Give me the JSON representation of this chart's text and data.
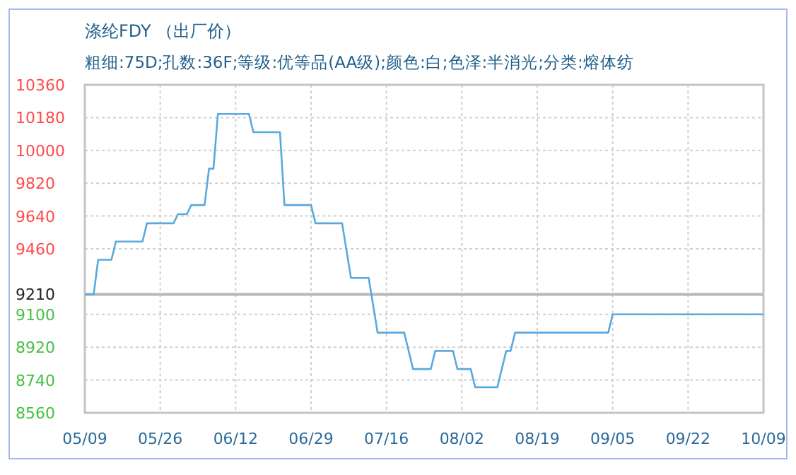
{
  "chart_data": {
    "type": "line",
    "title": "涤纶FDY （出厂价）",
    "subtitle": "粗细:75D;孔数:36F;等级:优等品(AA级);颜色:白;色泽:半消光;分类:熔体纺",
    "x": [
      "--05-09",
      "--05-11",
      "--05-12",
      "--05-15",
      "--05-16",
      "--05-22",
      "--05-23",
      "--05-29",
      "--05-30",
      "--06-01",
      "--06-02",
      "--06-05",
      "--06-06",
      "--06-07",
      "--06-08",
      "--06-15",
      "--06-16",
      "--06-22",
      "--06-23",
      "--06-29",
      "--06-30",
      "--07-06",
      "--07-08",
      "--07-12",
      "--07-14",
      "--07-20",
      "--07-22",
      "--07-26",
      "--07-27",
      "--07-31",
      "--08-01",
      "--08-04",
      "--08-05",
      "--08-10",
      "--08-12",
      "--08-13",
      "--08-14",
      "--09-04",
      "--09-05",
      "--10-09"
    ],
    "series": [
      {
        "color": "#5aa9de",
        "values": [
          9210,
          9210,
          9400,
          9400,
          9500,
          9500,
          9600,
          9600,
          9650,
          9650,
          9700,
          9700,
          9900,
          9900,
          10200,
          10200,
          10100,
          10100,
          9700,
          9700,
          9600,
          9600,
          9300,
          9300,
          9000,
          9000,
          8800,
          8800,
          8900,
          8900,
          8800,
          8800,
          8700,
          8700,
          8900,
          8900,
          9000,
          9000,
          9100,
          9100
        ]
      }
    ],
    "xlim": [
      "--05-09",
      "--10-09"
    ],
    "xticks": [
      {
        "value": "--05-09",
        "label": "05/09"
      },
      {
        "value": "--05-26",
        "label": "05/26"
      },
      {
        "value": "--06-12",
        "label": "06/12"
      },
      {
        "value": "--06-29",
        "label": "06/29"
      },
      {
        "value": "--07-16",
        "label": "07/16"
      },
      {
        "value": "--08-02",
        "label": "08/02"
      },
      {
        "value": "--08-19",
        "label": "08/19"
      },
      {
        "value": "--09-05",
        "label": "09/05"
      },
      {
        "value": "--09-22",
        "label": "09/22"
      },
      {
        "value": "--10-09",
        "label": "10/09"
      }
    ],
    "ylim": [
      8560,
      10360
    ],
    "yticks": [
      8560,
      8740,
      8920,
      9100,
      9210,
      9460,
      9640,
      9820,
      10000,
      10180,
      10360
    ],
    "ref_lines": [
      {
        "axis": "y",
        "value": 9210,
        "color": "#b8b8b8"
      }
    ],
    "grid": true,
    "marker": "none",
    "line_style": "solid"
  }
}
